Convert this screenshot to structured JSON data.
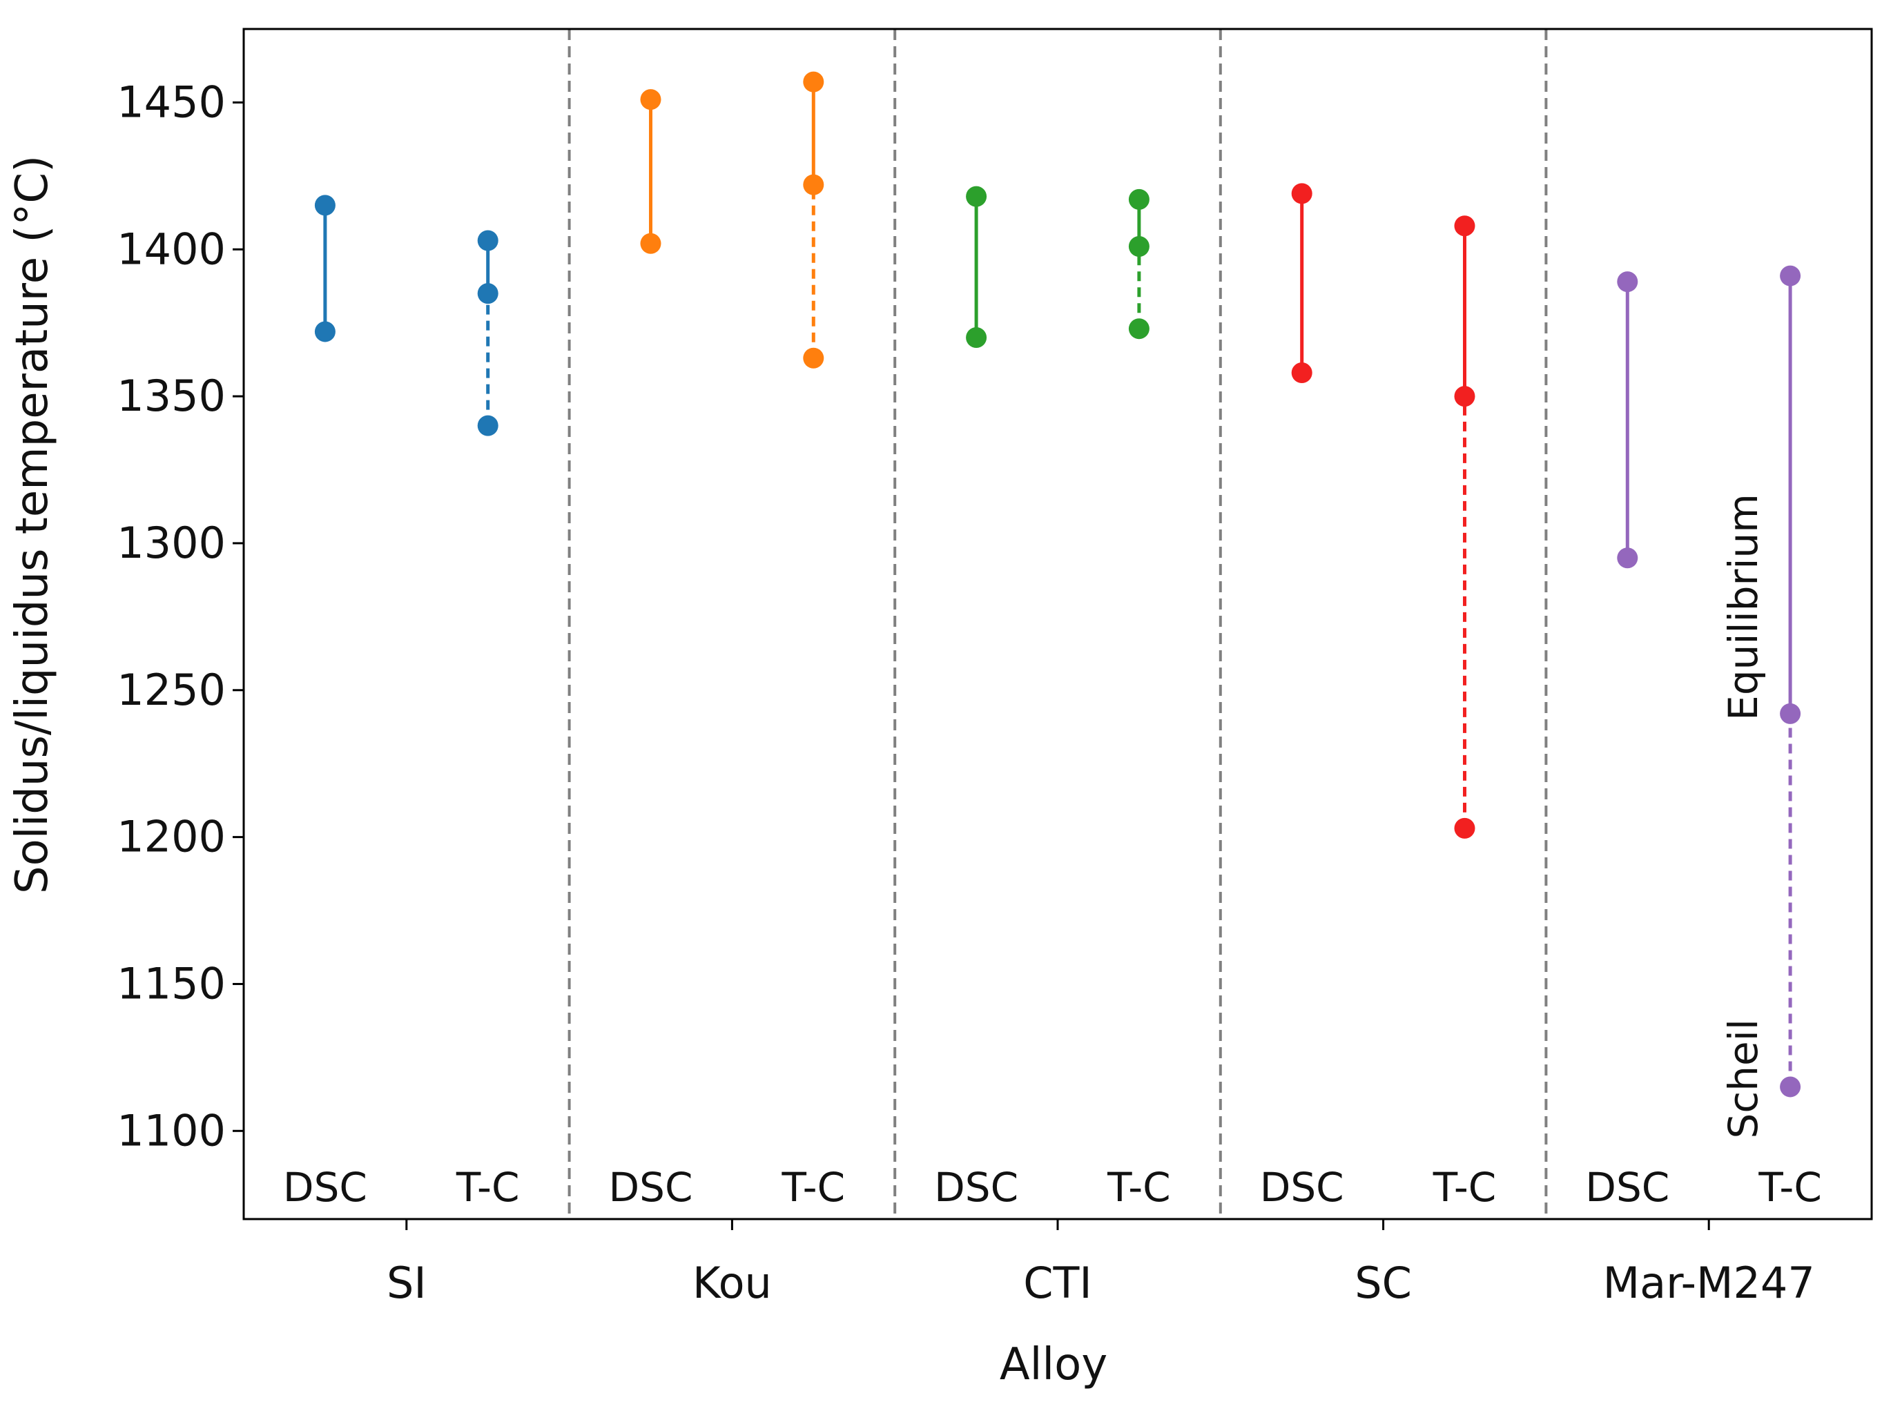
{
  "chart_data": {
    "type": "range-dot",
    "xlabel": "Alloy",
    "ylabel": "Solidus/liquidus temperature (°C)",
    "ylim": [
      1070,
      1475
    ],
    "yticks": [
      1100,
      1150,
      1200,
      1250,
      1300,
      1350,
      1400,
      1450
    ],
    "groups": [
      {
        "name": "SI",
        "color": "#1f77b4",
        "dsc": {
          "label": "DSC",
          "solidus": 1372,
          "liquidus": 1415
        },
        "tc": {
          "label": "T-C",
          "scheil": 1340,
          "equilibrium": 1385,
          "liquidus": 1403
        }
      },
      {
        "name": "Kou",
        "color": "#ff7f0e",
        "dsc": {
          "label": "DSC",
          "solidus": 1402,
          "liquidus": 1451
        },
        "tc": {
          "label": "T-C",
          "scheil": 1363,
          "equilibrium": 1422,
          "liquidus": 1457
        }
      },
      {
        "name": "CTI",
        "color": "#2ca02c",
        "dsc": {
          "label": "DSC",
          "solidus": 1370,
          "liquidus": 1418
        },
        "tc": {
          "label": "T-C",
          "scheil": 1373,
          "equilibrium": 1401,
          "liquidus": 1417
        }
      },
      {
        "name": "SC",
        "color": "#f22020",
        "dsc": {
          "label": "DSC",
          "solidus": 1358,
          "liquidus": 1419
        },
        "tc": {
          "label": "T-C",
          "scheil": 1203,
          "equilibrium": 1350,
          "liquidus": 1408
        }
      },
      {
        "name": "Mar-M247",
        "color": "#9467bd",
        "dsc": {
          "label": "DSC",
          "solidus": 1295,
          "liquidus": 1389
        },
        "tc": {
          "label": "T-C",
          "scheil": 1115,
          "equilibrium": 1242,
          "liquidus": 1391
        }
      }
    ],
    "annotations": {
      "equilibrium": "Equilibrium",
      "scheil": "Scheil"
    },
    "separator_color": "#808080"
  }
}
